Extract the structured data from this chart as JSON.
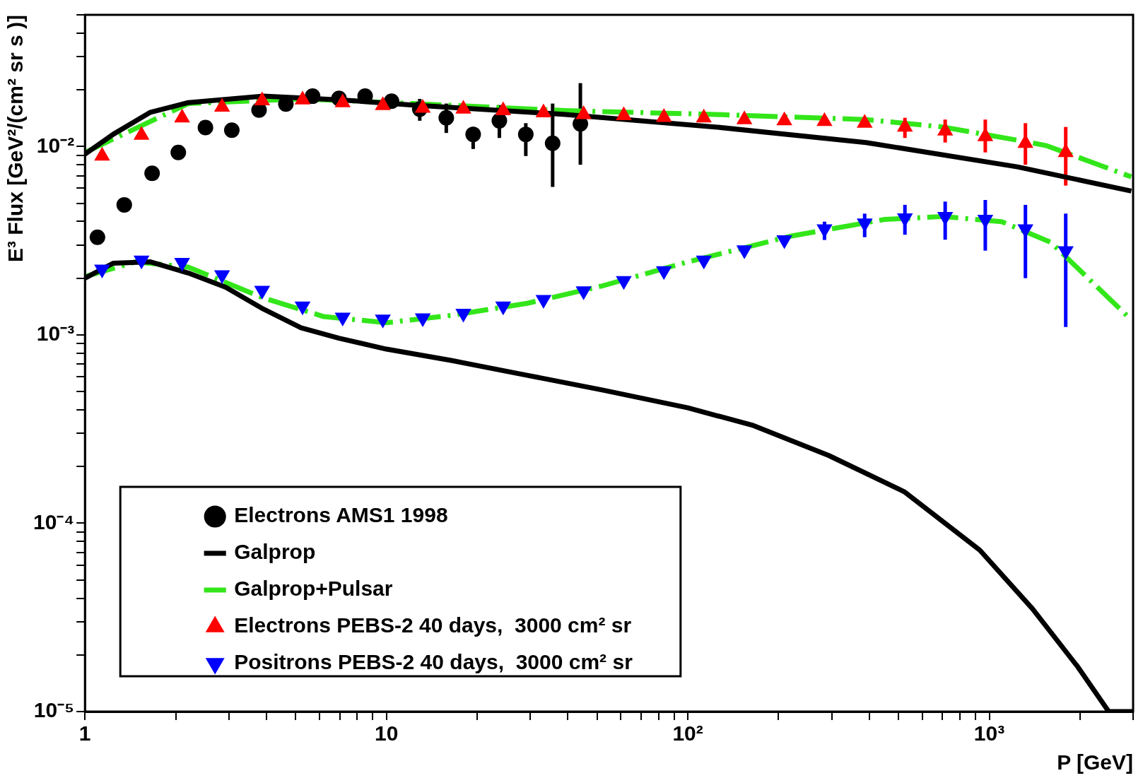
{
  "chart_data": {
    "type": "scatter",
    "xlabel": "P [GeV]",
    "ylabel": "E³ Flux [GeV²/(cm² sr s )]",
    "log": "xy",
    "legend": "bottom left",
    "grid": false,
    "xlim": [
      1,
      3000
    ],
    "ylim": [
      1e-05,
      0.05
    ],
    "xticks": [
      1,
      {
        "value": 2,
        "label": null
      },
      {
        "value": 3,
        "label": null
      },
      {
        "value": 4,
        "label": null
      },
      {
        "value": 5,
        "label": null
      },
      {
        "value": 6,
        "label": null
      },
      {
        "value": 7,
        "label": null
      },
      {
        "value": 8,
        "label": null
      },
      {
        "value": 9,
        "label": null
      },
      10,
      {
        "value": 20,
        "label": null
      },
      {
        "value": 30,
        "label": null
      },
      {
        "value": 40,
        "label": null
      },
      {
        "value": 50,
        "label": null
      },
      {
        "value": 60,
        "label": null
      },
      {
        "value": 70,
        "label": null
      },
      {
        "value": 80,
        "label": null
      },
      {
        "value": 90,
        "label": null
      },
      {
        "value": 100,
        "label": "10²"
      },
      {
        "value": 200,
        "label": null
      },
      {
        "value": 300,
        "label": null
      },
      {
        "value": 400,
        "label": null
      },
      {
        "value": 500,
        "label": null
      },
      {
        "value": 600,
        "label": null
      },
      {
        "value": 700,
        "label": null
      },
      {
        "value": 800,
        "label": null
      },
      {
        "value": 900,
        "label": null
      },
      {
        "value": 1000,
        "label": "10³"
      },
      {
        "value": 2000,
        "label": null
      },
      {
        "value": 3000,
        "label": null
      }
    ],
    "yticks": [
      {
        "value": 1e-05,
        "label": "10⁻⁵"
      },
      {
        "value": 2e-05,
        "label": null
      },
      {
        "value": 3e-05,
        "label": null
      },
      {
        "value": 4e-05,
        "label": null
      },
      {
        "value": 5e-05,
        "label": null
      },
      {
        "value": 6e-05,
        "label": null
      },
      {
        "value": 7e-05,
        "label": null
      },
      {
        "value": 8e-05,
        "label": null
      },
      {
        "value": 9e-05,
        "label": null
      },
      {
        "value": 0.0001,
        "label": "10⁻⁴"
      },
      {
        "value": 0.0002,
        "label": null
      },
      {
        "value": 0.0003,
        "label": null
      },
      {
        "value": 0.0004,
        "label": null
      },
      {
        "value": 0.0005,
        "label": null
      },
      {
        "value": 0.0006,
        "label": null
      },
      {
        "value": 0.0007,
        "label": null
      },
      {
        "value": 0.0008,
        "label": null
      },
      {
        "value": 0.0009,
        "label": null
      },
      {
        "value": 0.001,
        "label": "10⁻³"
      },
      {
        "value": 0.002,
        "label": null
      },
      {
        "value": 0.003,
        "label": null
      },
      {
        "value": 0.004,
        "label": null
      },
      {
        "value": 0.005,
        "label": null
      },
      {
        "value": 0.006,
        "label": null
      },
      {
        "value": 0.007,
        "label": null
      },
      {
        "value": 0.008,
        "label": null
      },
      {
        "value": 0.009,
        "label": null
      },
      {
        "value": 0.01,
        "label": "10⁻²"
      },
      {
        "value": 0.02,
        "label": null
      },
      {
        "value": 0.03,
        "label": null
      },
      {
        "value": 0.04,
        "label": null
      },
      {
        "value": 0.05,
        "label": null
      }
    ],
    "series": [
      {
        "name": "Electrons AMS1 1998",
        "marker": "circle",
        "color": "#000000",
        "x": [
          1.1,
          1.35,
          1.67,
          2.04,
          2.51,
          3.07,
          3.78,
          4.64,
          5.69,
          6.96,
          8.5,
          10.4,
          12.9,
          15.8,
          19.4,
          23.7,
          29.0,
          35.6,
          44
        ],
        "values": [
          0.0033,
          0.0049,
          0.0072,
          0.0093,
          0.0126,
          0.0122,
          0.0156,
          0.0168,
          0.0185,
          0.018,
          0.0185,
          0.0174,
          0.0158,
          0.0142,
          0.0116,
          0.0137,
          0.0116,
          0.0104,
          0.0132
        ],
        "errors": [
          null,
          null,
          null,
          null,
          null,
          null,
          null,
          null,
          null,
          null,
          null,
          null,
          [
            0.0137,
            0.0179
          ],
          [
            0.0118,
            0.0169
          ],
          [
            0.0097,
            0.0127
          ],
          [
            0.0111,
            0.0166
          ],
          [
            0.0089,
            0.0133
          ],
          [
            0.0061,
            0.0169
          ],
          [
            0.008,
            0.0217
          ]
        ]
      },
      {
        "name": "Galprop",
        "type": "line",
        "marker": "none",
        "line_style": "solid",
        "color": "#000000",
        "x": [
          1,
          1.24,
          1.65,
          2.2,
          3.91,
          6.96,
          12.3,
          39.2,
          123,
          390,
          1240,
          2960
        ],
        "values": [
          0.0091,
          0.0116,
          0.0152,
          0.0171,
          0.0185,
          0.0177,
          0.0166,
          0.0148,
          0.0127,
          0.0105,
          0.0078,
          0.0058
        ]
      },
      {
        "name": "Galprop+Pulsar",
        "type": "line",
        "marker": "none",
        "line_style": "dashed",
        "color": "#33e61a",
        "x": [
          1,
          2.2,
          5.21,
          12.3,
          39.2,
          123,
          390,
          700,
          1240,
          1550,
          2960
        ],
        "values": [
          0.0093,
          0.0169,
          0.0179,
          0.0169,
          0.0155,
          0.0148,
          0.0139,
          0.0127,
          0.0108,
          0.0101,
          0.0069
        ]
      },
      {
        "type": "line",
        "marker": "none",
        "line_style": "solid",
        "color": "#000000",
        "x": [
          1,
          1.24,
          1.65,
          2.2,
          2.93,
          3.91,
          5.21,
          6.96,
          10,
          16.5,
          29.3,
          52,
          100,
          165,
          293,
          522,
          930,
          1390,
          1970,
          2490,
          3000
        ],
        "values": [
          0.002,
          0.0024,
          0.00244,
          0.00213,
          0.00179,
          0.00137,
          0.00109,
          0.00096,
          0.00084,
          0.00073,
          0.00061,
          0.00051,
          0.00041,
          0.00033,
          0.000229,
          0.000147,
          7.2e-05,
          3.52e-05,
          1.72e-05,
          1e-05,
          1e-05
        ]
      },
      {
        "type": "line",
        "marker": "none",
        "line_style": "dashed",
        "color": "#33e61a",
        "x": [
          1,
          1.47,
          2.2,
          3.91,
          6.2,
          10,
          16.5,
          29.3,
          52,
          100,
          219,
          450,
          700,
          1100,
          1600,
          2960
        ],
        "values": [
          0.00204,
          0.00244,
          0.00229,
          0.00157,
          0.00125,
          0.00116,
          0.00127,
          0.00147,
          0.00182,
          0.00244,
          0.00334,
          0.0041,
          0.00425,
          0.00399,
          0.0031,
          0.0012
        ]
      },
      {
        "name": "Electrons PEBS-2 40 days,  3000 cm² sr",
        "marker": "triangle",
        "color": "#ff0000",
        "x": [
          1.14,
          1.54,
          2.1,
          2.85,
          3.87,
          5.27,
          7.16,
          9.73,
          13.2,
          18.0,
          24.4,
          33.2,
          45.1,
          61.3,
          83.3,
          113,
          154,
          209,
          284,
          386,
          525,
          714,
          970,
          1318,
          1793
        ],
        "values": [
          0.0089,
          0.0115,
          0.0142,
          0.0162,
          0.0175,
          0.0177,
          0.0171,
          0.0165,
          0.016,
          0.0158,
          0.0155,
          0.0151,
          0.0148,
          0.0146,
          0.0143,
          0.0142,
          0.0139,
          0.0137,
          0.0136,
          0.0133,
          0.0127,
          0.0121,
          0.0113,
          0.0104,
          0.0093
        ],
        "errors": [
          null,
          null,
          null,
          null,
          null,
          null,
          null,
          null,
          null,
          null,
          null,
          null,
          null,
          null,
          null,
          null,
          null,
          null,
          null,
          null,
          [
            0.0111,
            0.0142
          ],
          [
            0.0105,
            0.0139
          ],
          [
            0.0093,
            0.0139
          ],
          [
            0.008,
            0.0133
          ],
          [
            0.0062,
            0.0127
          ]
        ]
      },
      {
        "name": "Positrons PEBS-2 40 days,  3000 cm² sr",
        "marker": "triangle-down",
        "color": "#0000ff",
        "x": [
          1.14,
          1.54,
          2.1,
          2.85,
          3.87,
          5.27,
          7.16,
          9.73,
          13.2,
          18.0,
          24.4,
          33.2,
          45.1,
          61.3,
          83.3,
          113,
          154,
          209,
          284,
          386,
          525,
          714,
          970,
          1318,
          1793
        ],
        "values": [
          0.00223,
          0.00249,
          0.00242,
          0.00208,
          0.00172,
          0.00142,
          0.00124,
          0.00121,
          0.00123,
          0.0013,
          0.00142,
          0.00154,
          0.00171,
          0.00194,
          0.00219,
          0.00249,
          0.00282,
          0.00319,
          0.00365,
          0.00392,
          0.00417,
          0.00425,
          0.0041,
          0.00365,
          0.00279
        ],
        "errors": [
          null,
          null,
          null,
          null,
          null,
          null,
          null,
          null,
          null,
          null,
          null,
          null,
          null,
          null,
          null,
          null,
          null,
          null,
          [
            0.00319,
            0.00399
          ],
          [
            0.0033,
            0.0044
          ],
          [
            0.0034,
            0.0049
          ],
          [
            0.0032,
            0.0051
          ],
          [
            0.0028,
            0.0052
          ],
          [
            0.002,
            0.0049
          ],
          [
            0.0011,
            0.0044
          ]
        ]
      }
    ]
  }
}
